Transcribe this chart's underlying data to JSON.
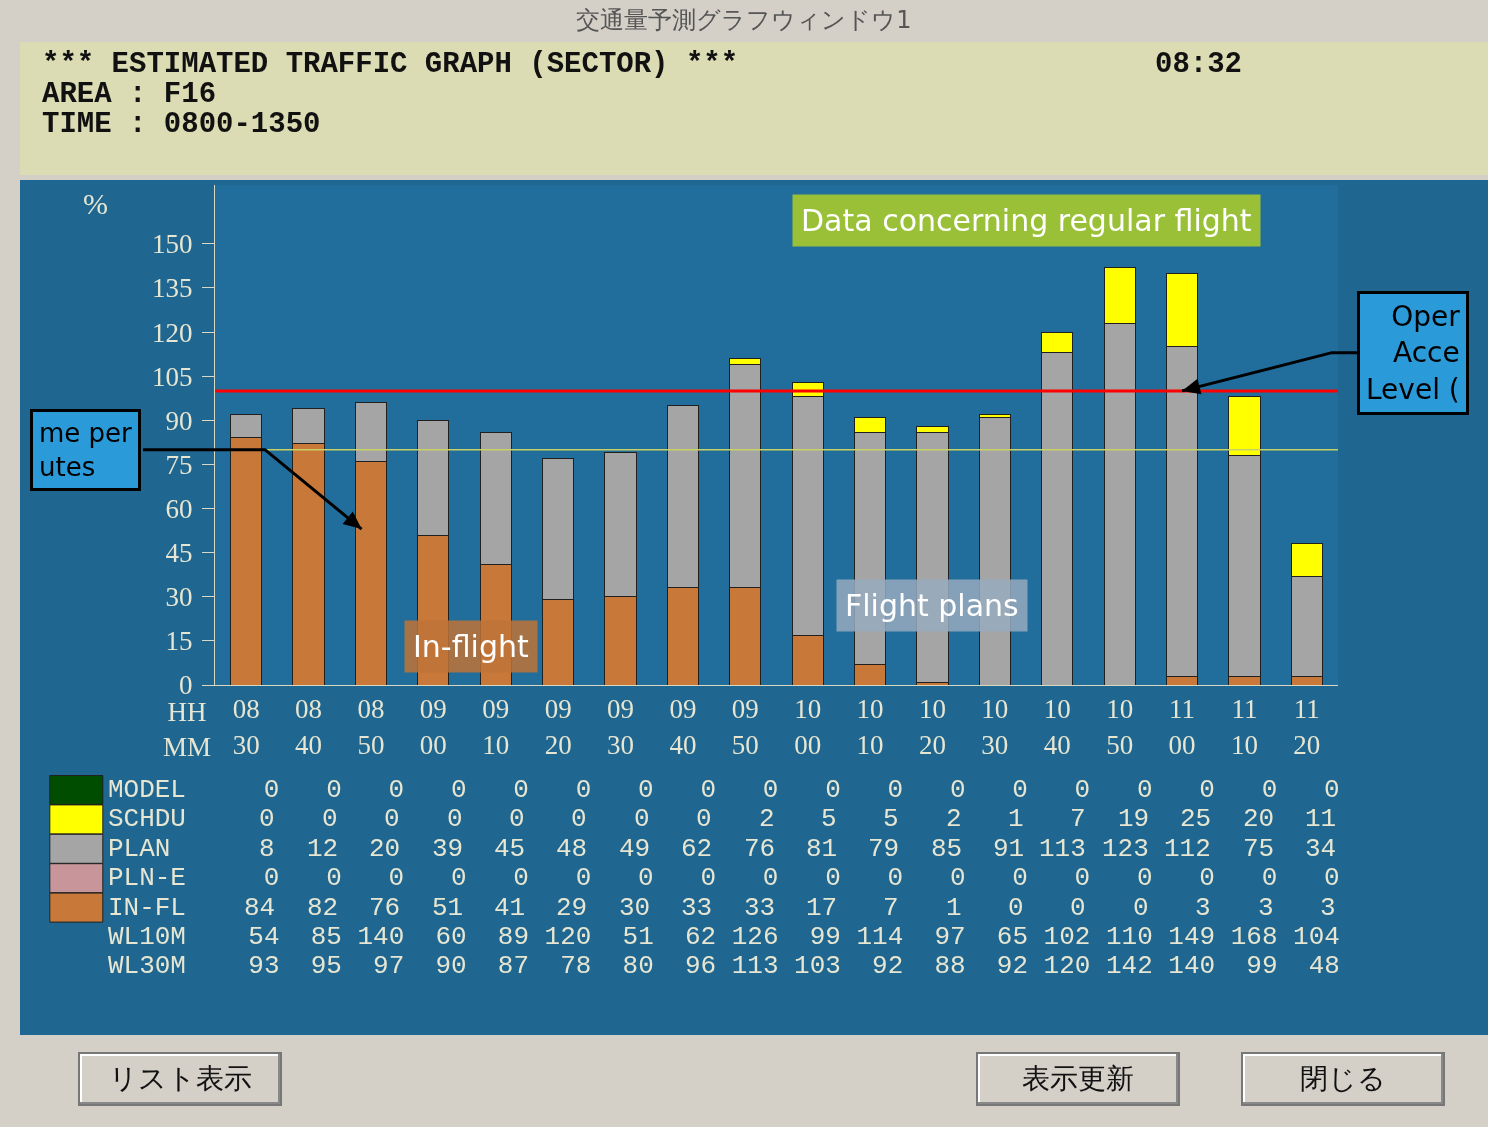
{
  "chart_data": {
    "type": "bar",
    "title": "*** ESTIMATED TRAFFIC GRAPH (SECTOR) ***",
    "subtitle": "AREA : F16\nTIME : 0800-1350",
    "xlabel": "HH\nMM",
    "ylabel": "%",
    "categories": [
      "08\n30",
      "08\n40",
      "08\n50",
      "09\n00",
      "09\n10",
      "09\n20",
      "09\n30",
      "09\n40",
      "09\n50",
      "10\n00",
      "10\n10",
      "10\n20",
      "10\n30",
      "10\n40",
      "10\n50",
      "11\n00",
      "11\n10",
      "11\n20"
    ],
    "series": [
      {
        "name": "IN-FL",
        "color": "#c8793a",
        "values": [
          84,
          82,
          76,
          51,
          41,
          29,
          30,
          33,
          33,
          17,
          7,
          1,
          0,
          0,
          0,
          3,
          3,
          3
        ],
        "value_labels": [
          "84",
          "82",
          "76",
          "51",
          "41",
          "29",
          "30",
          "33",
          "33",
          "17",
          "7",
          "1",
          "0",
          "0",
          "0",
          "3",
          "3",
          "3"
        ]
      },
      {
        "name": "PLN-E",
        "color": "#c8969a",
        "values": [
          0,
          0,
          0,
          0,
          0,
          0,
          0,
          0,
          0,
          0,
          0,
          0,
          0,
          0,
          0,
          0,
          0,
          0
        ],
        "value_labels": [
          null,
          null,
          null,
          null,
          null,
          null,
          null,
          null,
          null,
          null,
          null,
          null,
          null,
          null,
          null,
          null,
          null,
          null
        ]
      },
      {
        "name": "PLAN",
        "color": "#a5a5a5",
        "values": [
          8,
          12,
          20,
          39,
          45,
          48,
          49,
          62,
          76,
          81,
          79,
          85,
          91,
          113,
          123,
          112,
          75,
          34
        ],
        "value_labels": [
          "8",
          "12",
          "20",
          "39",
          "45",
          "48",
          "49",
          "62",
          "76",
          "81",
          "79",
          "85",
          "91",
          "113",
          "123",
          "112",
          "75",
          "34"
        ]
      },
      {
        "name": "SCHDU",
        "color": "#ffff00",
        "values": [
          0,
          0,
          0,
          0,
          0,
          0,
          0,
          0,
          2,
          5,
          5,
          2,
          1,
          7,
          19,
          25,
          20,
          11
        ],
        "value_labels": [
          "0",
          "0",
          "0",
          "0",
          "0",
          "0",
          "0",
          "0",
          "2",
          "5",
          "5",
          "2",
          "1",
          "7",
          "19",
          "25",
          "20",
          "11"
        ]
      },
      {
        "name": "MODEL",
        "color": "#004d00",
        "values": [
          0,
          0,
          0,
          0,
          0,
          0,
          0,
          0,
          0,
          0,
          0,
          0,
          0,
          0,
          0,
          0,
          0,
          0
        ],
        "value_labels": [
          null,
          null,
          null,
          null,
          null,
          null,
          null,
          null,
          null,
          null,
          null,
          null,
          null,
          null,
          null,
          null,
          null,
          null
        ]
      }
    ],
    "stacked": true,
    "legend": "bottom left",
    "grid": false,
    "ylim": [
      0,
      170
    ],
    "yticks": [
      0,
      15,
      30,
      45,
      60,
      75,
      90,
      105,
      120,
      135,
      150
    ],
    "ref_lines": [
      {
        "axis": "y",
        "value": 100,
        "color": "#ff0000"
      },
      {
        "axis": "y",
        "value": 80,
        "color": "#c8d264"
      }
    ],
    "annotations": [
      "交通量予測グラフウィンドウ1",
      "08:32",
      "Data concerning regular flight",
      "Flight plans",
      "In-flight",
      "me per\nutes",
      {
        "text": "Oper\nAcce\nLevel (",
        "x": "11\n00",
        "y": 100
      },
      "WL10M 54 85 140 60 89 120 51 62 126 99 114 97 65 102 110 149 168 104",
      "WL30M 93 95 97 90 87 78 80 96 113 103 92 88 92 120 142 140 99 48",
      "0 0 0 0 0 0 0 0 0 0 0 0 0 0 0 0 0 0",
      "0 0 0 0 0 0 0 0 0 0 0 0 0 0 0 0 0 0",
      "リスト表示",
      "表示更新",
      "閉じる"
    ]
  }
}
